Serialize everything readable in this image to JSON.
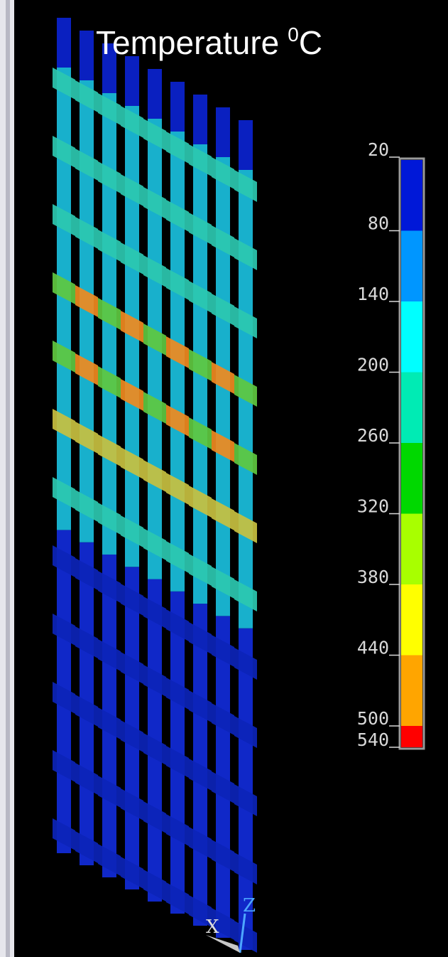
{
  "title": {
    "text": "Temperature",
    "superscript": "0",
    "unit": "C"
  },
  "colorbar": {
    "labels": [
      20,
      80,
      140,
      200,
      260,
      320,
      380,
      440,
      500,
      540
    ],
    "colors": [
      "#0018d8",
      "#0096ff",
      "#00ffff",
      "#00ebb4",
      "#00d800",
      "#a8ff00",
      "#ffff00",
      "#ffa500",
      "#ff0000"
    ]
  },
  "triad": {
    "x": "X",
    "z": "Z"
  }
}
